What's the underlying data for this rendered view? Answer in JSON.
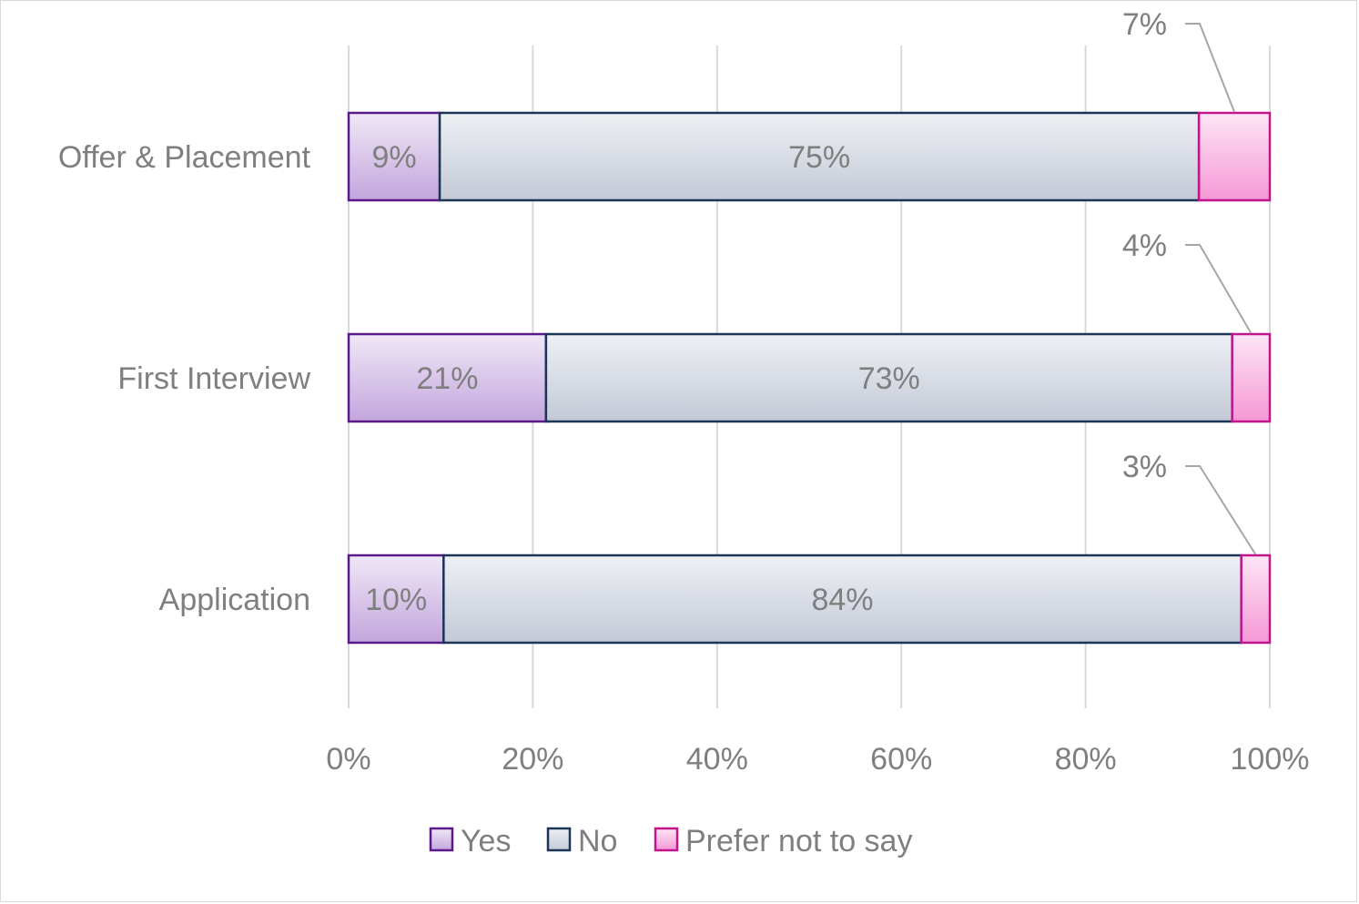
{
  "chart_data": {
    "type": "bar",
    "orientation": "horizontal",
    "stacked": "percent",
    "categories": [
      "Offer & Placement",
      "First Interview",
      "Application"
    ],
    "series": [
      {
        "name": "Yes",
        "values": [
          9,
          21,
          10
        ],
        "labels": [
          "9%",
          "21%",
          "10%"
        ]
      },
      {
        "name": "No",
        "values": [
          75,
          73,
          84
        ],
        "labels": [
          "75%",
          "73%",
          "84%"
        ]
      },
      {
        "name": "Prefer not to say",
        "values": [
          7,
          4,
          3
        ],
        "labels": [
          "7%",
          "4%",
          "3%"
        ]
      }
    ],
    "xlim": [
      0,
      100
    ],
    "xticks": [
      "0%",
      "20%",
      "40%",
      "60%",
      "80%",
      "100%"
    ],
    "grid": "vertical",
    "legend_position": "bottom",
    "title": "",
    "xlabel": "",
    "ylabel": ""
  },
  "colors": {
    "yes_fill_top": "#efe8f7",
    "yes_fill_bottom": "#c3a6dd",
    "yes_stroke": "#5b1a87",
    "no_fill_top": "#eef0f4",
    "no_fill_bottom": "#c3c9d6",
    "no_stroke": "#1d3557",
    "prefer_fill_top": "#fde6f5",
    "prefer_fill_bottom": "#f598d6",
    "prefer_stroke": "#c2158c",
    "text": "#7f7f7f",
    "grid": "#d9d9d9",
    "leader": "#a6a6a6"
  }
}
